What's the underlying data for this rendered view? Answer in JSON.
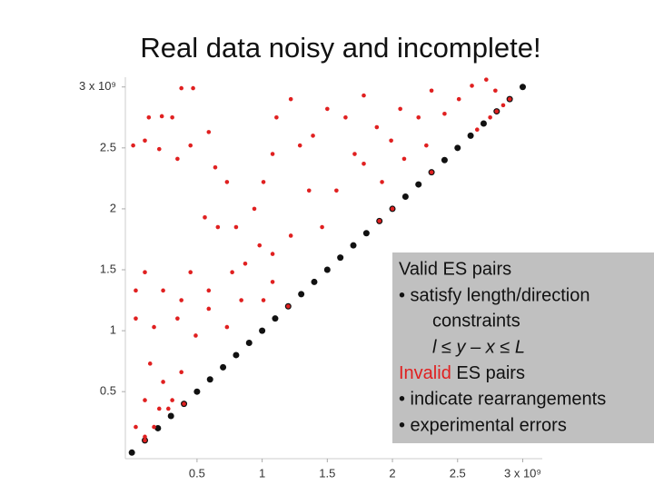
{
  "title": "Real data noisy and incomplete!",
  "chart_data": {
    "type": "scatter",
    "xlim": [
      -0.05,
      3.15
    ],
    "ylim": [
      -0.05,
      3.08
    ],
    "xticks": [
      0.5,
      1,
      1.5,
      2,
      2.5,
      {
        "value": 3,
        "label": "3 x 10⁹"
      }
    ],
    "yticks": [
      0.5,
      1,
      1.5,
      2,
      2.5,
      {
        "value": 3,
        "label": "3 x 10⁹"
      }
    ],
    "series": [
      {
        "color": "#111111",
        "x": [
          0,
          0.1,
          0.2,
          0.3,
          0.4,
          0.5,
          0.6,
          0.7,
          0.8,
          0.9,
          1,
          1.1,
          1.2,
          1.3,
          1.4,
          1.5,
          1.6,
          1.7,
          1.8,
          1.9,
          2,
          2.1,
          2.2,
          2.3,
          2.4,
          2.5,
          2.6,
          2.7,
          2.8,
          2.9,
          3
        ],
        "values": [
          0,
          0.1,
          0.2,
          0.3,
          0.4,
          0.5,
          0.6,
          0.7,
          0.8,
          0.9,
          1,
          1.1,
          1.2,
          1.3,
          1.4,
          1.5,
          1.6,
          1.7,
          1.8,
          1.9,
          2,
          2.1,
          2.2,
          2.3,
          2.4,
          2.5,
          2.6,
          2.7,
          2.8,
          2.9,
          3
        ]
      },
      {
        "color": "#e02020",
        "x": [
          0.38,
          0.47,
          0.13,
          0.23,
          0.31,
          0.01,
          0.1,
          0.21,
          0.35,
          0.45,
          0.59,
          0.64,
          0.73,
          0.56,
          0.66,
          0.8,
          0.94,
          1.01,
          1.08,
          1.11,
          1.22,
          1.29,
          1.39,
          1.5,
          1.64,
          1.71,
          1.78,
          1.88,
          1.99,
          2.06,
          2.2,
          2.3,
          2.4,
          2.51,
          2.61,
          2.72,
          2.79,
          2.26,
          2.09,
          1.78,
          1.92,
          1.36,
          1.57,
          1.46,
          1.22,
          1.08,
          0.98,
          0.87,
          0.77,
          0.59,
          0.45,
          0.38,
          0.24,
          0.1,
          0.03,
          0.03,
          0.17,
          0.35,
          0.49,
          0.59,
          0.73,
          0.84,
          1.01,
          1.08,
          0.14,
          0.24,
          0.38,
          0.1,
          0.21,
          0.31,
          0.03,
          0.17,
          0.28,
          0.1,
          0.1,
          0.4,
          1.2,
          1.9,
          2.0,
          2.3,
          2.65,
          2.75,
          2.8,
          2.85,
          2.9
        ],
        "values": [
          2.99,
          2.99,
          2.75,
          2.76,
          2.75,
          2.52,
          2.56,
          2.49,
          2.41,
          2.52,
          2.63,
          2.34,
          2.22,
          1.93,
          1.85,
          1.85,
          2.0,
          2.22,
          2.45,
          2.75,
          2.9,
          2.52,
          2.6,
          2.82,
          2.75,
          2.45,
          2.93,
          2.67,
          2.56,
          2.82,
          2.75,
          2.97,
          2.78,
          2.9,
          3.01,
          3.06,
          2.97,
          2.52,
          2.41,
          2.37,
          2.22,
          2.15,
          2.15,
          1.85,
          1.78,
          1.63,
          1.7,
          1.55,
          1.48,
          1.33,
          1.48,
          1.25,
          1.33,
          1.48,
          1.33,
          1.1,
          1.03,
          1.1,
          0.96,
          1.18,
          1.03,
          1.25,
          1.25,
          1.4,
          0.73,
          0.58,
          0.66,
          0.43,
          0.36,
          0.43,
          0.21,
          0.21,
          0.36,
          0.13,
          0.1,
          0.4,
          1.2,
          1.9,
          2.0,
          2.3,
          2.65,
          2.75,
          2.8,
          2.85,
          2.9
        ]
      }
    ]
  },
  "text_box": {
    "lines": [
      "Valid ES pairs",
      "• satisfy length/direction",
      "constraints",
      "l ≤ y – x ≤ L"
    ],
    "invalid": {
      "highlight": "Invalid",
      "rest": " ES pairs"
    },
    "reasons": [
      "• indicate rearrangements",
      "• experimental errors"
    ]
  }
}
